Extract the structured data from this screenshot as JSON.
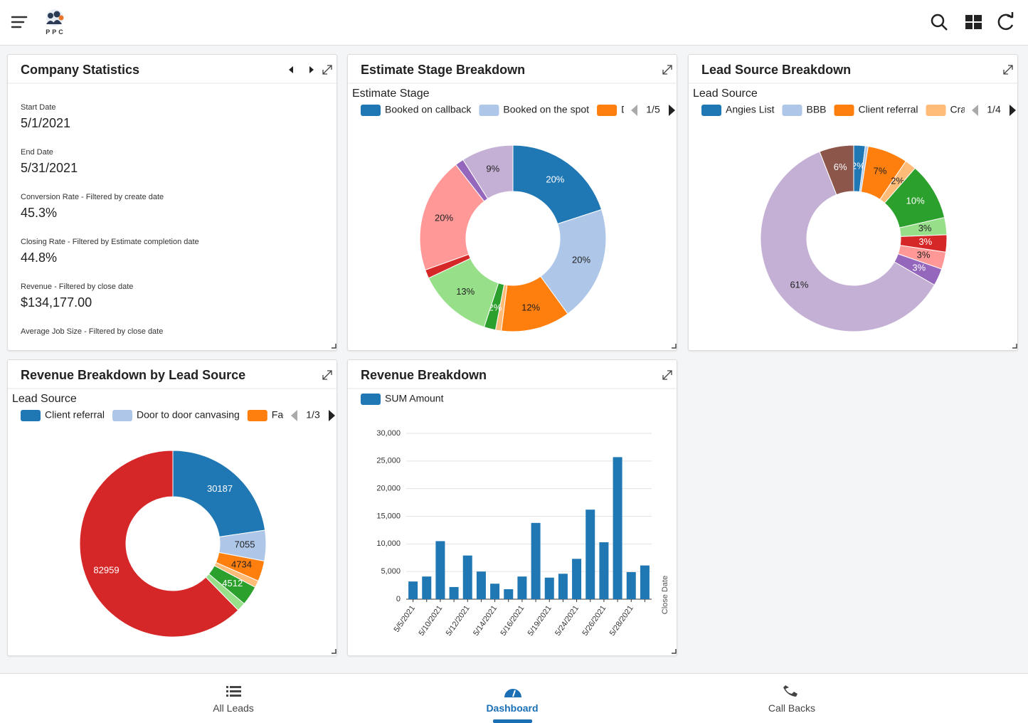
{
  "header": {
    "logo": "PPC"
  },
  "company_statistics": {
    "title": "Company Statistics",
    "stats": [
      {
        "label": "Start Date",
        "value": "5/1/2021"
      },
      {
        "label": "End Date",
        "value": "5/31/2021"
      },
      {
        "label": "Conversion Rate - Filtered by create date",
        "value": "45.3%"
      },
      {
        "label": "Closing Rate - Filtered by Estimate completion date",
        "value": "44.8%"
      },
      {
        "label": "Revenue - Filtered by close date",
        "value": "$134,177.00"
      },
      {
        "label": "Average Job Size - Filtered by close date"
      }
    ]
  },
  "chart_data": [
    {
      "type": "pie",
      "title": "Estimate Stage Breakdown",
      "subtitle": "Estimate Stage",
      "legend": [
        "Booked on callback",
        "Booked on the spot",
        "D"
      ],
      "legend_page": "1/5",
      "values": [
        20,
        20,
        12,
        1,
        2,
        13,
        1.5,
        20,
        1.5,
        9
      ],
      "value_labels": [
        "20%",
        "20%",
        "12%",
        null,
        "2%",
        "13%",
        null,
        "20%",
        null,
        "9%"
      ],
      "colors": [
        "#1f77b4",
        "#aec7e8",
        "#ff7f0e",
        "#ffbb78",
        "#2ca02c",
        "#98df8a",
        "#d62728",
        "#ff9896",
        "#9467bd",
        "#c5b0d5"
      ]
    },
    {
      "type": "pie",
      "title": "Lead Source Breakdown",
      "subtitle": "Lead Source",
      "legend": [
        "Angies List",
        "BBB",
        "Client referral",
        "Cra"
      ],
      "legend_page": "1/4",
      "values": [
        2,
        0.5,
        7,
        2,
        10,
        3,
        3,
        3,
        3,
        61,
        6
      ],
      "value_labels": [
        "2%",
        null,
        "7%",
        "2%",
        "10%",
        "3%",
        "3%",
        "3%",
        "3%",
        "61%",
        "6%"
      ],
      "colors": [
        "#1f77b4",
        "#aec7e8",
        "#ff7f0e",
        "#ffbb78",
        "#2ca02c",
        "#98df8a",
        "#d62728",
        "#ff9896",
        "#9467bd",
        "#c5b0d5",
        "#8c564b"
      ]
    },
    {
      "type": "pie",
      "title": "Revenue Breakdown by Lead Source",
      "subtitle": "Lead Source",
      "legend": [
        "Client referral",
        "Door to door canvasing",
        "Fac"
      ],
      "legend_page": "1/3",
      "values": [
        30187,
        7055,
        4734,
        1600,
        4512,
        2000,
        82959
      ],
      "value_labels": [
        "30187",
        "7055",
        "4734",
        null,
        "4512",
        null,
        "82959"
      ],
      "colors": [
        "#1f77b4",
        "#aec7e8",
        "#ff7f0e",
        "#ffbb78",
        "#2ca02c",
        "#98df8a",
        "#d62728"
      ]
    },
    {
      "type": "bar",
      "title": "Revenue Breakdown",
      "xlabel": "Close Date",
      "categories": [
        "5/5/2021",
        null,
        "5/10/2021",
        null,
        "5/12/2021",
        null,
        "5/14/2021",
        null,
        "5/16/2021",
        null,
        "5/19/2021",
        null,
        "5/24/2021",
        null,
        "5/26/2021",
        null,
        "5/28/2021",
        null
      ],
      "series": [
        {
          "name": "SUM Amount",
          "color": "#1f77b4",
          "values": [
            3200,
            4100,
            10500,
            2200,
            7900,
            5000,
            2800,
            1800,
            4100,
            13800,
            3900,
            4600,
            7300,
            16200,
            10300,
            25700,
            4900,
            6100
          ]
        }
      ],
      "ylim": [
        0,
        30000
      ],
      "yticks": [
        0,
        {
          "value": 5000,
          "label": "5,000"
        },
        {
          "value": 10000,
          "label": "10,000"
        },
        {
          "value": 15000,
          "label": "15,000"
        },
        {
          "value": 20000,
          "label": "20,000"
        },
        {
          "value": 25000,
          "label": "25,000"
        },
        {
          "value": 30000,
          "label": "30,000"
        }
      ],
      "grid": true
    }
  ],
  "nav": {
    "items": [
      "All Leads",
      "Dashboard",
      "Call Backs"
    ]
  }
}
